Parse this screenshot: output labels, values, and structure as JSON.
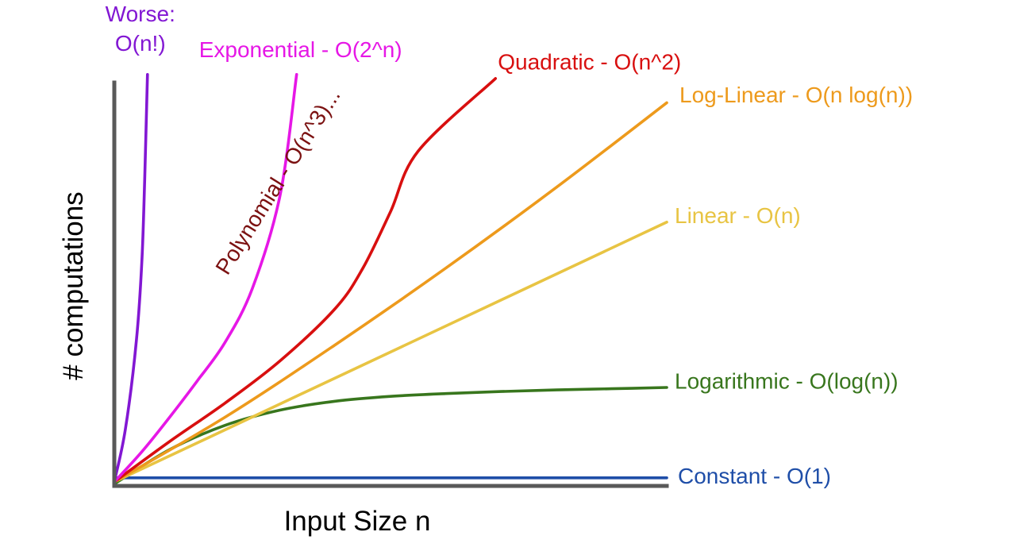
{
  "chart_data": {
    "type": "line",
    "title": "",
    "xlabel": "Input Size n",
    "ylabel": "# computations",
    "grid": false,
    "legend": "inline labels at line ends",
    "xlim": [
      0,
      10
    ],
    "ylim": [
      0,
      10
    ],
    "series": [
      {
        "name": "Constant - O(1)",
        "key": "constant",
        "color": "#1f4ea8",
        "x": [
          0,
          2,
          4,
          6,
          8,
          10
        ],
        "y": [
          0.2,
          0.2,
          0.2,
          0.2,
          0.2,
          0.2
        ]
      },
      {
        "name": "Logarithmic - O(log(n))",
        "key": "logarithmic",
        "color": "#38761d",
        "x": [
          0,
          1,
          2,
          3,
          4,
          5,
          6,
          7,
          8,
          9,
          10
        ],
        "y": [
          0.05,
          0.9,
          1.5,
          1.88,
          2.1,
          2.22,
          2.29,
          2.34,
          2.38,
          2.41,
          2.44
        ]
      },
      {
        "name": "Linear - O(n)",
        "key": "linear",
        "color": "#e8c443",
        "x": [
          0,
          10
        ],
        "y": [
          0.1,
          6.54
        ]
      },
      {
        "name": "Log-Linear - O(n log(n))",
        "key": "loglinear",
        "color": "#ed9a1c",
        "x": [
          0,
          2,
          4,
          6,
          8,
          10
        ],
        "y": [
          0.1,
          1.7,
          3.5,
          5.4,
          7.4,
          9.5
        ]
      },
      {
        "name": "Quadratic - O(n^2)",
        "key": "quadratic",
        "color": "#d80f0f",
        "x": [
          0,
          1,
          2,
          3,
          4,
          4.5,
          5,
          5.5,
          6.9
        ],
        "y": [
          0.1,
          1.1,
          2.05,
          3.1,
          4.4,
          5.4,
          6.8,
          8.3,
          10.1
        ]
      },
      {
        "name": "Exponential - O(2^n)",
        "key": "exponential",
        "color": "#e617e6",
        "x": [
          0,
          0.5,
          1,
          1.5,
          2,
          2.5,
          3,
          3.3
        ],
        "y": [
          0.1,
          0.85,
          1.7,
          2.6,
          3.55,
          4.9,
          7.2,
          10.2
        ]
      },
      {
        "name": "Worse: O(n!)",
        "key": "factorial",
        "color": "#8217d3",
        "x": [
          0,
          0.2,
          0.4,
          0.5,
          0.55,
          0.6
        ],
        "y": [
          0.1,
          1.4,
          3.6,
          5.6,
          7.6,
          10.2
        ]
      }
    ],
    "annotations": [
      {
        "text": "Polynomial - O(n^3)...",
        "color": "#7b1111",
        "x": 2.05,
        "y": 5.2,
        "rotation_deg": -58
      }
    ]
  }
}
